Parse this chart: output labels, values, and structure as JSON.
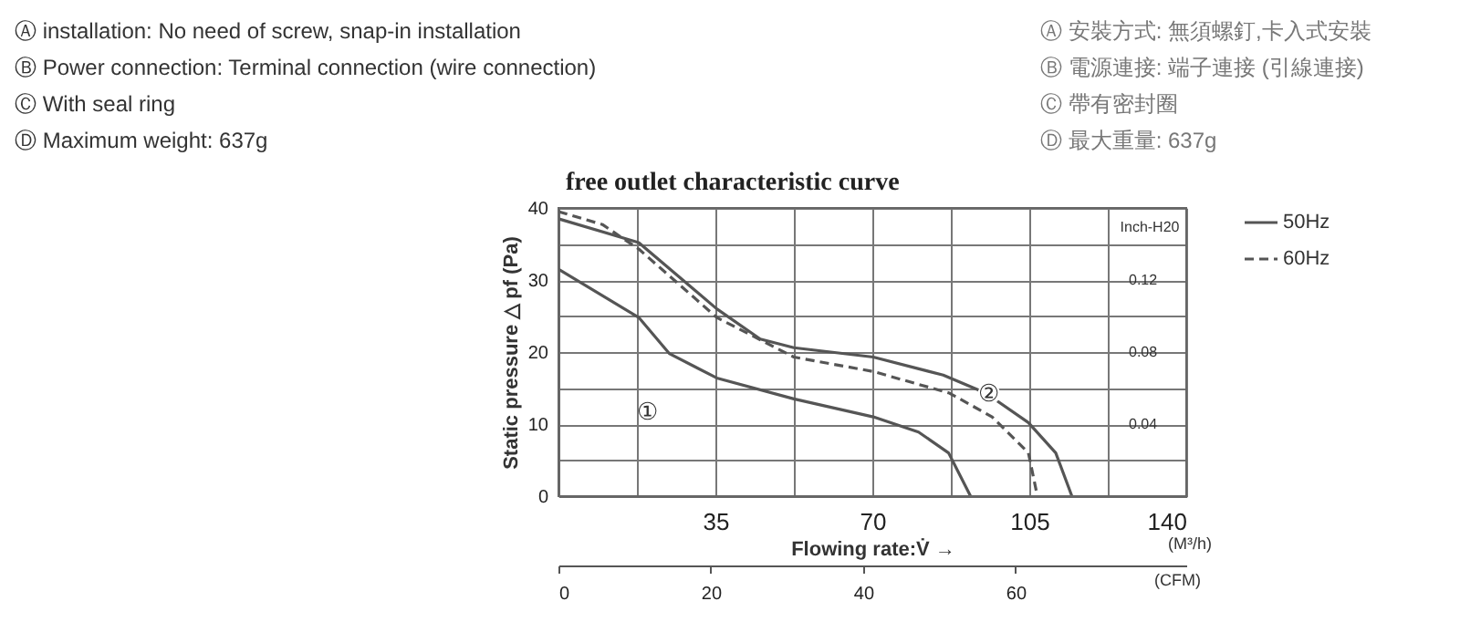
{
  "chart_data": {
    "type": "line",
    "title": "free outlet characteristic curve",
    "xlabel": "Flowing rate:V̇ →",
    "ylabel": "Static pressure △ pf (Pa)",
    "y2label": "Inch-H20",
    "x2label": "(CFM)",
    "xlim": [
      0,
      140
    ],
    "xticks": [
      {
        "value": 0,
        "label": null
      },
      {
        "value": 17.5,
        "label": null
      },
      35,
      {
        "value": 52.5,
        "label": null
      },
      70,
      {
        "value": 87.5,
        "label": null
      },
      105,
      {
        "value": 122.5,
        "label": null
      },
      140
    ],
    "ylim": [
      0,
      40
    ],
    "yticks": [
      0,
      {
        "value": 5,
        "label": null
      },
      10,
      {
        "value": 15,
        "label": null
      },
      20,
      {
        "value": 25,
        "label": null
      },
      30,
      {
        "value": 35,
        "label": null
      },
      40
    ],
    "y2lim": [
      0,
      0.16
    ],
    "y2ticks": [
      0.04,
      0.08,
      0.12
    ],
    "x2lim": [
      0,
      82.4
    ],
    "x2ticks": [
      0,
      20,
      40,
      60
    ],
    "grid": true,
    "legend": "right",
    "marker": "none",
    "series": [
      {
        "name": "50Hz",
        "color": "#555555",
        "line_style": "solid",
        "x": [
          0,
          17.9,
          35.3,
          45,
          52.5,
          70.2,
          85.8,
          95.3,
          104.8,
          110.9,
          114.5
        ],
        "values": [
          38.5,
          35.2,
          26,
          21.8,
          20.6,
          19.3,
          16.8,
          14.3,
          10.2,
          6,
          0
        ]
      },
      {
        "name": "60Hz",
        "color": "#555555",
        "line_style": "dashed",
        "x": [
          0,
          9.8,
          17.9,
          35.3,
          52.5,
          70.2,
          87.2,
          96.7,
          104.8,
          106.8
        ],
        "values": [
          39.5,
          37.7,
          34.3,
          24.8,
          19.3,
          17.3,
          14.3,
          11,
          6,
          0
        ]
      },
      {
        "color": "#555555",
        "line_style": "solid",
        "x": [
          0,
          17.9,
          24.7,
          35.3,
          52.5,
          70.2,
          80.3,
          87,
          91.9
        ],
        "values": [
          31.5,
          24.8,
          19.8,
          16.4,
          13.5,
          11,
          8.9,
          6,
          0
        ]
      }
    ],
    "annotations": [
      "Ⓐ installation: No need of screw, snap-in installation",
      "Ⓑ Power connection: Terminal connection (wire connection)",
      "Ⓒ With seal ring",
      "Ⓓ Maximum weight:  637g",
      "Ⓐ 安裝方式:  無須螺釘,卡入式安裝",
      "Ⓑ 電源連接: 端子連接 (引線連接)",
      "Ⓒ 帶有密封圈",
      "Ⓓ 最大重量: 637g",
      "(M³/h)",
      "①",
      {
        "text": "②",
        "x": 96,
        "y": 14.2
      }
    ]
  }
}
